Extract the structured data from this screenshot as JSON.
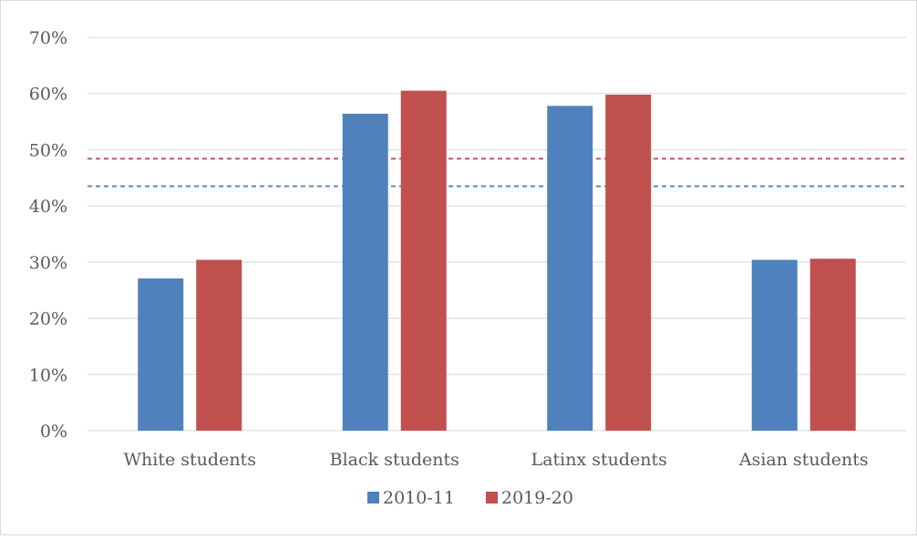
{
  "chart_data": {
    "type": "bar",
    "title": "",
    "xlabel": "",
    "ylabel": "",
    "categories": [
      "White students",
      "Black students",
      "Latinx students",
      "Asian students"
    ],
    "series": [
      {
        "name": "2010-11",
        "values": [
          27.1,
          56.4,
          57.8,
          30.4
        ],
        "color": "#4f81bd"
      },
      {
        "name": "2019-20",
        "values": [
          30.4,
          60.5,
          59.8,
          30.6
        ],
        "color": "#c0504d"
      }
    ],
    "reference_lines": [
      {
        "value": 43.5,
        "color": "#4f81bd",
        "style": "dashed"
      },
      {
        "value": 48.4,
        "color": "#c0504d",
        "style": "dashed"
      }
    ],
    "ylim": [
      0,
      70
    ],
    "yticks": [
      0,
      10,
      20,
      30,
      40,
      50,
      60,
      70
    ],
    "ytick_labels": [
      "0%",
      "10%",
      "20%",
      "30%",
      "40%",
      "50%",
      "60%",
      "70%"
    ],
    "grid": true,
    "gridline_color": "#d9d9d9",
    "legend_position": "bottom"
  }
}
